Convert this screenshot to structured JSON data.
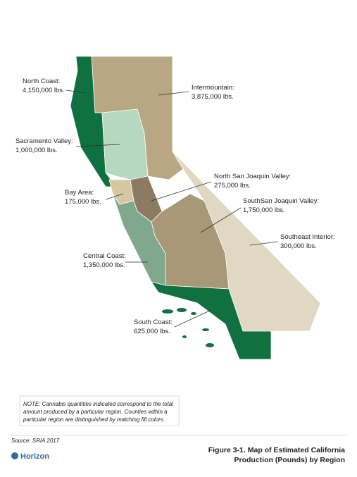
{
  "regions": [
    {
      "name": "North Coast:",
      "amount": "4,150,000 lbs."
    },
    {
      "name": "Intermountain:",
      "amount": "3,875,000 lbs."
    },
    {
      "name": "Sacramento Valley:",
      "amount": "1,000,000 lbs."
    },
    {
      "name": "North San Joaquin Valley:",
      "amount": "275,000 lbs."
    },
    {
      "name": "Bay Area:",
      "amount": "175,000 lbs."
    },
    {
      "name": "SouthSan Joaquin Valley:",
      "amount": "1,750,000 lbs."
    },
    {
      "name": "Southeast Interior:",
      "amount": "300,000 lbs."
    },
    {
      "name": "Central Coast:",
      "amount": "1,350,000 lbs."
    },
    {
      "name": "South Coast:",
      "amount": "625,000 lbs."
    }
  ],
  "note_lines": [
    "NOTE: Cannabis quantities indicated correspond to the total",
    "amount produced by a particular region. Counties within a",
    "particular region are distinguished by matching fill colors."
  ],
  "source": "Source: SRIA 2017",
  "logo": "Horizon",
  "caption_lines": [
    "Figure 3-1. Map of Estimated California",
    "Production (Pounds) by Region"
  ]
}
